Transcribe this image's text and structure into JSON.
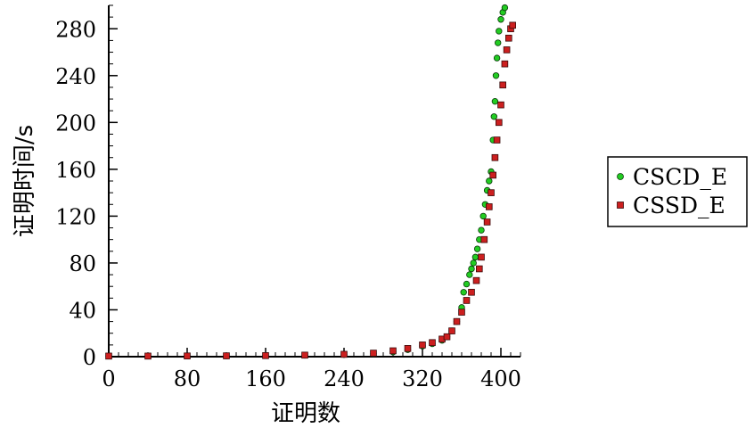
{
  "chart_data": {
    "type": "scatter",
    "title": "",
    "xlabel": "证明数",
    "ylabel": "证明时间/s",
    "xlim": [
      0,
      420
    ],
    "ylim": [
      0,
      300
    ],
    "xticks": [
      0,
      80,
      160,
      240,
      320,
      400
    ],
    "yticks": [
      0,
      40,
      80,
      120,
      160,
      200,
      240,
      280
    ],
    "grid": false,
    "legend_position": "right",
    "series": [
      {
        "name": "CSCD_E",
        "color": "#22cc22",
        "marker": "circle",
        "points": [
          [
            0,
            0.5
          ],
          [
            40,
            0.5
          ],
          [
            80,
            0.6
          ],
          [
            120,
            0.7
          ],
          [
            160,
            0.9
          ],
          [
            200,
            1.2
          ],
          [
            240,
            1.8
          ],
          [
            270,
            2.6
          ],
          [
            290,
            4
          ],
          [
            305,
            6
          ],
          [
            320,
            9
          ],
          [
            330,
            11
          ],
          [
            340,
            14
          ],
          [
            345,
            17
          ],
          [
            350,
            22
          ],
          [
            355,
            30
          ],
          [
            360,
            42
          ],
          [
            362,
            55
          ],
          [
            365,
            62
          ],
          [
            368,
            70
          ],
          [
            370,
            75
          ],
          [
            372,
            80
          ],
          [
            374,
            85
          ],
          [
            376,
            92
          ],
          [
            378,
            100
          ],
          [
            380,
            108
          ],
          [
            382,
            120
          ],
          [
            384,
            130
          ],
          [
            386,
            142
          ],
          [
            388,
            150
          ],
          [
            390,
            158
          ],
          [
            392,
            185
          ],
          [
            393,
            205
          ],
          [
            394,
            218
          ],
          [
            395,
            240
          ],
          [
            396,
            255
          ],
          [
            397,
            268
          ],
          [
            398,
            278
          ],
          [
            400,
            288
          ],
          [
            402,
            294
          ],
          [
            404,
            298
          ]
        ]
      },
      {
        "name": "CSSD_E",
        "color": "#cc1f1f",
        "marker": "square",
        "points": [
          [
            0,
            0.5
          ],
          [
            40,
            0.5
          ],
          [
            80,
            0.6
          ],
          [
            120,
            0.7
          ],
          [
            160,
            0.9
          ],
          [
            200,
            1.3
          ],
          [
            240,
            2.0
          ],
          [
            270,
            3
          ],
          [
            290,
            5
          ],
          [
            305,
            7
          ],
          [
            320,
            10
          ],
          [
            330,
            12
          ],
          [
            340,
            15
          ],
          [
            345,
            17
          ],
          [
            350,
            22
          ],
          [
            355,
            30
          ],
          [
            360,
            38
          ],
          [
            365,
            48
          ],
          [
            370,
            55
          ],
          [
            375,
            65
          ],
          [
            378,
            75
          ],
          [
            380,
            85
          ],
          [
            383,
            100
          ],
          [
            386,
            115
          ],
          [
            388,
            128
          ],
          [
            390,
            140
          ],
          [
            392,
            155
          ],
          [
            394,
            170
          ],
          [
            396,
            185
          ],
          [
            398,
            200
          ],
          [
            400,
            215
          ],
          [
            402,
            232
          ],
          [
            404,
            250
          ],
          [
            406,
            262
          ],
          [
            408,
            272
          ],
          [
            410,
            280
          ],
          [
            412,
            283
          ]
        ]
      }
    ]
  }
}
